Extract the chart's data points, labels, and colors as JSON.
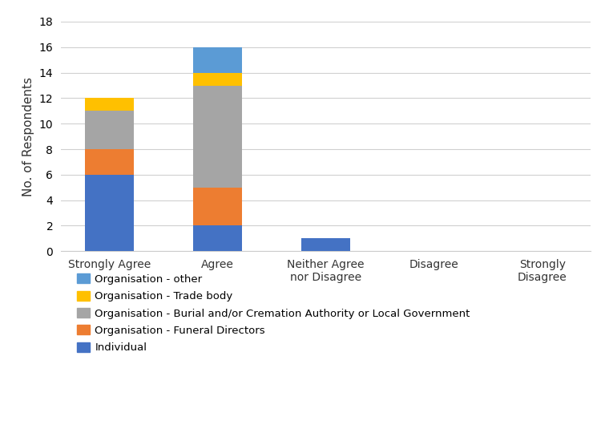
{
  "categories": [
    "Strongly Agree",
    "Agree",
    "Neither Agree\nnor Disagree",
    "Disagree",
    "Strongly\nDisagree"
  ],
  "series": {
    "Individual": [
      6,
      2,
      1,
      0,
      0
    ],
    "Organisation - Funeral Directors": [
      2,
      3,
      0,
      0,
      0
    ],
    "Organisation - Burial and/or Cremation Authority or Local Government": [
      3,
      8,
      0,
      0,
      0
    ],
    "Organisation - Trade body": [
      1,
      1,
      0,
      0,
      0
    ],
    "Organisation - other": [
      0,
      2,
      0,
      0,
      0
    ]
  },
  "colors": {
    "Individual": "#4472C4",
    "Organisation - Funeral Directors": "#ED7D31",
    "Organisation - Burial and/or Cremation Authority or Local Government": "#A5A5A5",
    "Organisation - Trade body": "#FFC000",
    "Organisation - other": "#5B9BD5"
  },
  "ylabel": "No. of Respondents",
  "ylim": [
    0,
    18
  ],
  "yticks": [
    0,
    2,
    4,
    6,
    8,
    10,
    12,
    14,
    16,
    18
  ],
  "legend_order": [
    "Organisation - other",
    "Organisation - Trade body",
    "Organisation - Burial and/or Cremation Authority or Local Government",
    "Organisation - Funeral Directors",
    "Individual"
  ],
  "background_color": "#ffffff",
  "grid_color": "#d0d0d0"
}
